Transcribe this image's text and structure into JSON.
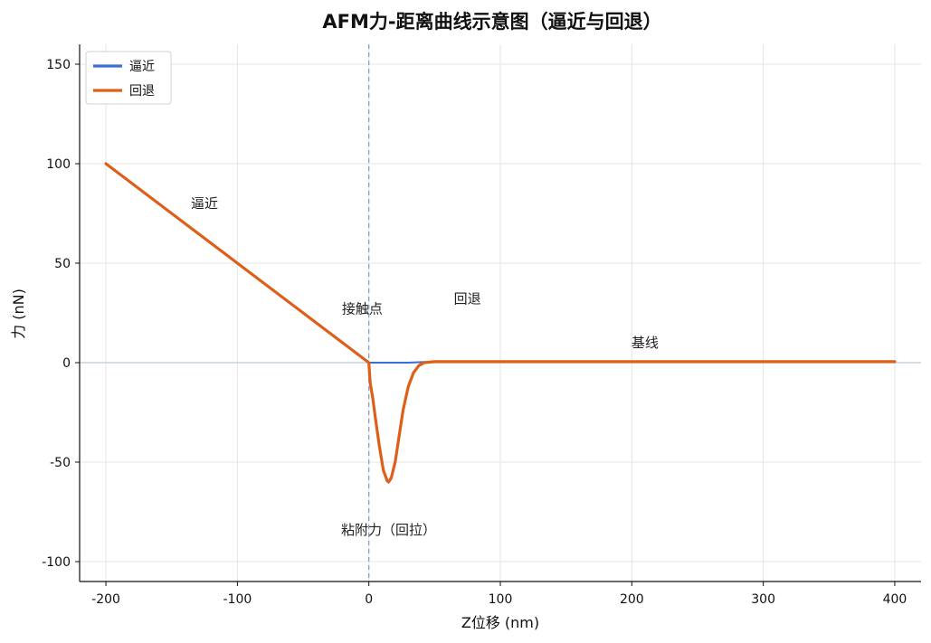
{
  "chart_data": {
    "type": "line",
    "title": "AFM力-距离曲线示意图（逼近与回退）",
    "xlabel": "Z位移 (nm)",
    "ylabel": "力 (nN)",
    "xlim": [
      -220,
      420
    ],
    "ylim": [
      -110,
      160
    ],
    "xticks": [
      -200,
      -100,
      0,
      100,
      200,
      300,
      400
    ],
    "yticks": [
      -100,
      -50,
      0,
      50,
      100,
      150
    ],
    "xtick_labels": [
      "-200",
      "-100",
      "0",
      "100",
      "200",
      "300",
      "400"
    ],
    "ytick_labels": [
      "-100",
      "-50",
      "0",
      "50",
      "100",
      "150"
    ],
    "grid": true,
    "legend_position": "top-left",
    "contact_point_x": 0,
    "series": [
      {
        "name": "逼近",
        "color": "#3a6fd8",
        "x": [
          -200,
          -150,
          -100,
          -50,
          0,
          20,
          30,
          40,
          60,
          100,
          200,
          300,
          400
        ],
        "y": [
          100,
          75,
          50,
          25,
          0,
          0,
          0,
          0.3,
          0.5,
          0.5,
          0.5,
          0.5,
          0.5
        ]
      },
      {
        "name": "回退",
        "color": "#dc5f1a",
        "x": [
          -200,
          -150,
          -100,
          -50,
          0,
          1,
          3,
          5,
          8,
          11,
          14,
          15,
          17,
          20,
          23,
          26,
          30,
          34,
          38,
          42,
          50,
          100,
          200,
          300,
          400
        ],
        "y": [
          100,
          75,
          50,
          25,
          0,
          -10,
          -18,
          -28,
          -42,
          -54,
          -59.5,
          -60,
          -58,
          -50,
          -37,
          -24,
          -12,
          -5,
          -1.5,
          0,
          0.5,
          0.5,
          0.5,
          0.5,
          0.5
        ]
      }
    ],
    "annotations": [
      {
        "text": "逼近",
        "x": -125,
        "y": 80
      },
      {
        "text": "接触点",
        "x": -5,
        "y": 27
      },
      {
        "text": "回退",
        "x": 75,
        "y": 32
      },
      {
        "text": "基线",
        "x": 210,
        "y": 10
      },
      {
        "text": "粘附力（回拉）",
        "x": 15,
        "y": -84
      }
    ]
  }
}
